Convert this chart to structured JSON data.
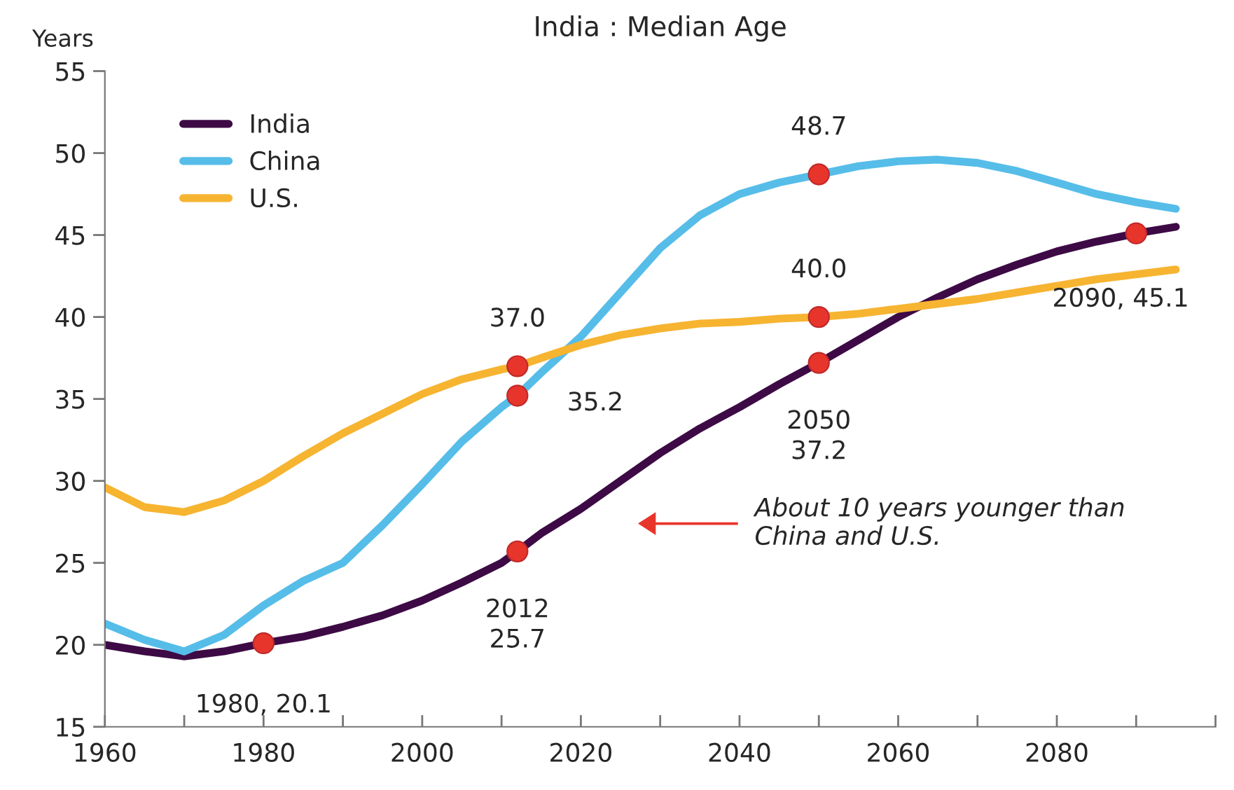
{
  "chart_data": {
    "type": "line",
    "title": "India : Median Age",
    "ylabel": "Years",
    "x": [
      1960,
      1965,
      1970,
      1975,
      1980,
      1985,
      1990,
      1995,
      2000,
      2005,
      2010,
      2012,
      2015,
      2020,
      2025,
      2030,
      2035,
      2040,
      2045,
      2050,
      2055,
      2060,
      2065,
      2070,
      2075,
      2080,
      2085,
      2090,
      2095
    ],
    "series": [
      {
        "name": "India",
        "color": "#3d0a45",
        "values": [
          20.0,
          19.6,
          19.3,
          19.6,
          20.1,
          20.5,
          21.1,
          21.8,
          22.7,
          23.8,
          25.0,
          25.7,
          26.8,
          28.3,
          30.0,
          31.7,
          33.2,
          34.5,
          35.9,
          37.2,
          38.6,
          40.0,
          41.2,
          42.3,
          43.2,
          44.0,
          44.6,
          45.1,
          45.5
        ]
      },
      {
        "name": "China",
        "color": "#56bde8",
        "values": [
          21.3,
          20.3,
          19.6,
          20.6,
          22.4,
          23.9,
          25.0,
          27.3,
          29.8,
          32.4,
          34.5,
          35.2,
          36.6,
          38.8,
          41.5,
          44.2,
          46.2,
          47.5,
          48.2,
          48.7,
          49.2,
          49.5,
          49.6,
          49.4,
          48.9,
          48.2,
          47.5,
          47.0,
          46.6
        ]
      },
      {
        "name": "U.S.",
        "color": "#f6b431",
        "values": [
          29.6,
          28.4,
          28.1,
          28.8,
          30.0,
          31.5,
          32.9,
          34.1,
          35.3,
          36.2,
          36.8,
          37.0,
          37.5,
          38.3,
          38.9,
          39.3,
          39.6,
          39.7,
          39.9,
          40.0,
          40.2,
          40.5,
          40.8,
          41.1,
          41.5,
          41.9,
          42.3,
          42.6,
          42.9
        ]
      },
      {
        "type": "scatter",
        "marker": "circle",
        "color": "#e8352b",
        "x": [
          1980,
          2012,
          2050,
          2090,
          2012,
          2050,
          2012,
          2050
        ],
        "values": [
          20.1,
          25.7,
          37.2,
          45.1,
          35.2,
          48.7,
          37.0,
          40.0
        ]
      }
    ],
    "annotations": [
      {
        "text": "1980, 20.1",
        "x": 1980,
        "y": 20.1
      },
      {
        "text": "2012\n25.7",
        "x": 2012,
        "y": 25.7
      },
      {
        "text": "2050\n37.2",
        "x": 2050,
        "y": 37.2
      },
      {
        "text": "2090, 45.1",
        "x": 2090,
        "y": 45.1
      },
      {
        "text": "35.2",
        "x": 2012,
        "y": 35.2
      },
      {
        "text": "48.7",
        "x": 2050,
        "y": 48.7
      },
      {
        "text": "37.0",
        "x": 2012,
        "y": 37.0
      },
      {
        "text": "40.0",
        "x": 2050,
        "y": 40.0
      },
      "About 10 years younger than\nChina and U.S."
    ],
    "xlim": [
      1960,
      2100
    ],
    "ylim": [
      15,
      55
    ],
    "xticks": [
      1960,
      {
        "value": 1970,
        "label": null
      },
      1980,
      {
        "value": 1990,
        "label": null
      },
      2000,
      {
        "value": 2010,
        "label": null
      },
      2020,
      {
        "value": 2030,
        "label": null
      },
      2040,
      {
        "value": 2050,
        "label": null
      },
      2060,
      {
        "value": 2070,
        "label": null
      },
      2080,
      {
        "value": 2090,
        "label": null
      },
      {
        "value": 2100,
        "label": null
      }
    ],
    "yticks": [
      15,
      20,
      25,
      30,
      35,
      40,
      45,
      50,
      55
    ],
    "grid": false,
    "legend": "top left",
    "marker": "none",
    "line_style": "solid"
  }
}
